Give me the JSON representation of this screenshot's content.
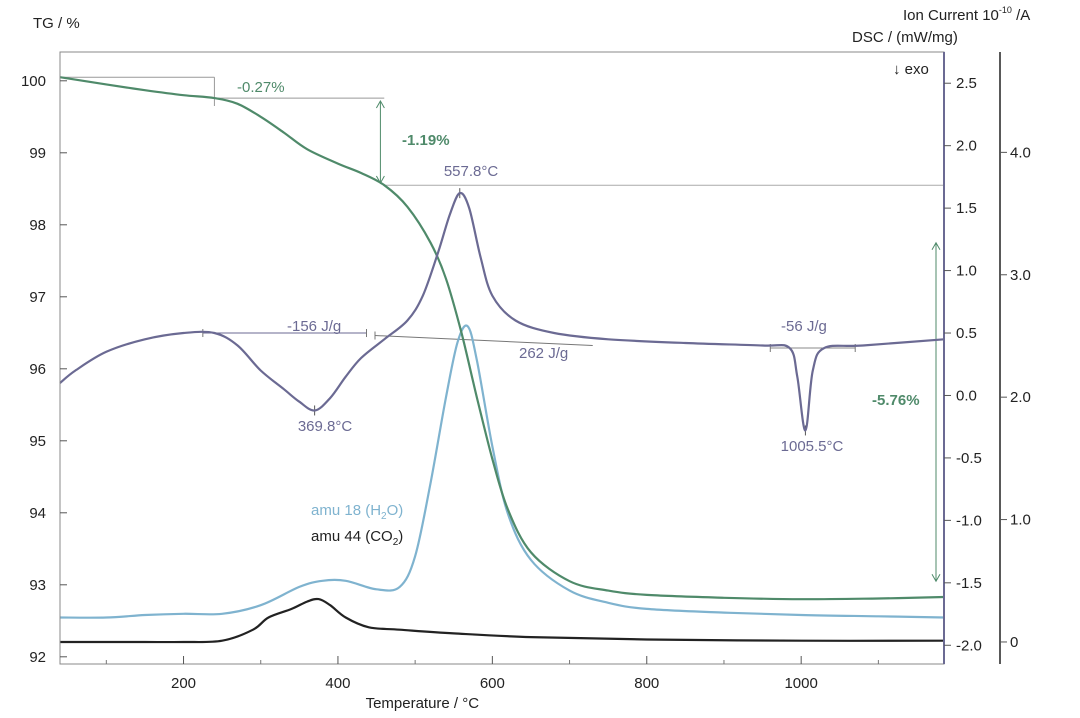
{
  "chart_data": {
    "type": "line",
    "title": "",
    "xlabel": "Temperature / °C",
    "x_ticks": [
      200,
      400,
      600,
      800,
      1000
    ],
    "xlim": [
      40,
      1185
    ],
    "axes": {
      "tg": {
        "label": "TG / %",
        "ticks": [
          92,
          93,
          94,
          95,
          96,
          97,
          98,
          99,
          100
        ],
        "ylim": [
          91.9,
          100.4
        ]
      },
      "dsc": {
        "label": "DSC / (mW/mg)",
        "exo_label": "↓ exo",
        "ticks": [
          2.5,
          2.0,
          1.5,
          1.0,
          0.5,
          0.0,
          -0.5,
          -1.0,
          -1.5,
          -2.0
        ],
        "tick_labels": [
          "2.5",
          "2.0",
          "1.5",
          "1.0",
          "0.5",
          "0.0",
          "-0.5",
          "-1.0",
          "-1.5",
          "-2.0"
        ],
        "ylim": [
          -2.15,
          2.75
        ]
      },
      "ion": {
        "label": "Ion Current 10",
        "label_exp": "-10",
        "label_unit": " /A",
        "ticks": [
          0,
          1.0,
          2.0,
          3.0,
          4.0
        ],
        "tick_labels": [
          "0",
          "1.0",
          "2.0",
          "3.0",
          "4.0"
        ],
        "ylim": [
          -0.18,
          4.82
        ]
      }
    },
    "series": [
      {
        "name": "TG",
        "axis": "tg",
        "color": "#4f8a6a",
        "x": [
          40,
          100,
          150,
          200,
          240,
          270,
          300,
          330,
          360,
          400,
          430,
          460,
          490,
          520,
          540,
          560,
          580,
          600,
          620,
          650,
          700,
          750,
          800,
          900,
          1000,
          1100,
          1185
        ],
        "y": [
          100.05,
          99.95,
          99.87,
          99.8,
          99.76,
          99.68,
          99.5,
          99.28,
          99.05,
          98.85,
          98.72,
          98.55,
          98.25,
          97.75,
          97.25,
          96.5,
          95.6,
          94.75,
          94.05,
          93.45,
          93.05,
          92.92,
          92.86,
          92.82,
          92.8,
          92.81,
          92.83
        ]
      },
      {
        "name": "DSC",
        "axis": "dsc",
        "color": "#6b6a93",
        "x": [
          40,
          60,
          100,
          150,
          200,
          240,
          270,
          300,
          330,
          350,
          370,
          390,
          410,
          430,
          460,
          490,
          510,
          530,
          545,
          557.8,
          570,
          585,
          600,
          630,
          680,
          750,
          850,
          950,
          985,
          995,
          1005.5,
          1015,
          1030,
          1080,
          1185
        ],
        "y": [
          0.1,
          0.2,
          0.35,
          0.45,
          0.5,
          0.5,
          0.4,
          0.2,
          0.05,
          -0.05,
          -0.12,
          -0.02,
          0.15,
          0.3,
          0.45,
          0.6,
          0.8,
          1.15,
          1.45,
          1.62,
          1.5,
          1.1,
          0.8,
          0.6,
          0.5,
          0.45,
          0.42,
          0.4,
          0.38,
          0.15,
          -0.28,
          0.2,
          0.38,
          0.4,
          0.45
        ]
      },
      {
        "name": "amu 18 (H",
        "name_sub": "2",
        "name_tail": "O)",
        "axis": "ion",
        "color": "#7fb3cf",
        "x": [
          40,
          100,
          150,
          200,
          250,
          300,
          350,
          380,
          410,
          450,
          480,
          500,
          520,
          540,
          555,
          568,
          580,
          600,
          620,
          650,
          700,
          750,
          800,
          900,
          1000,
          1100,
          1185
        ],
        "y": [
          0.2,
          0.2,
          0.22,
          0.23,
          0.23,
          0.3,
          0.45,
          0.5,
          0.5,
          0.43,
          0.45,
          0.7,
          1.3,
          2.0,
          2.45,
          2.58,
          2.3,
          1.6,
          1.05,
          0.67,
          0.42,
          0.32,
          0.27,
          0.24,
          0.22,
          0.21,
          0.2
        ]
      },
      {
        "name": "amu 44 (CO",
        "name_sub": "2",
        "name_tail": ")",
        "axis": "ion",
        "color": "#222222",
        "x": [
          40,
          100,
          150,
          200,
          250,
          290,
          310,
          340,
          360,
          375,
          390,
          410,
          440,
          480,
          550,
          650,
          800,
          1000,
          1185
        ],
        "y": [
          0,
          0,
          0,
          0,
          0.01,
          0.1,
          0.2,
          0.27,
          0.33,
          0.35,
          0.3,
          0.2,
          0.12,
          0.1,
          0.07,
          0.04,
          0.02,
          0.01,
          0.01
        ]
      }
    ],
    "annotations": [
      {
        "text": "-0.27%",
        "color": "#4f8a6a"
      },
      {
        "text": "-1.19%",
        "color": "#4f8a6a"
      },
      {
        "text": "557.8°C",
        "color": "#6b6a93"
      },
      {
        "text": "-156 J/g",
        "color": "#6b6a93"
      },
      {
        "text": "262 J/g",
        "color": "#6b6a93"
      },
      {
        "text": "-56  J/g",
        "color": "#6b6a93"
      },
      {
        "text": "369.8°C",
        "color": "#6b6a93"
      },
      {
        "text": "1005.5°C",
        "color": "#6b6a93"
      },
      {
        "text": "-5.76%",
        "color": "#4f8a6a"
      }
    ]
  }
}
